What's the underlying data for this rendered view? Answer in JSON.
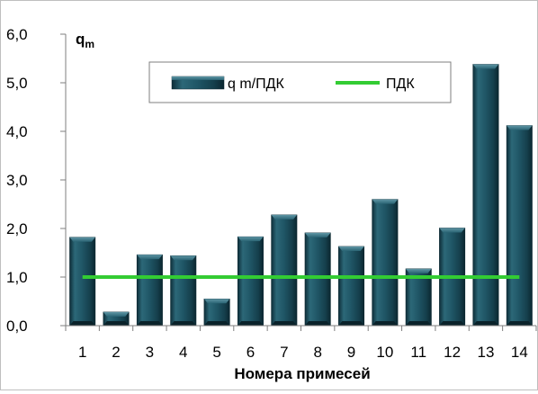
{
  "chart_data": {
    "type": "bar",
    "categories": [
      "1",
      "2",
      "3",
      "4",
      "5",
      "6",
      "7",
      "8",
      "9",
      "10",
      "11",
      "12",
      "13",
      "14"
    ],
    "series": [
      {
        "name": "q m/ПДК",
        "kind": "bar",
        "color": "#1f4e5f",
        "values": [
          1.82,
          0.28,
          1.46,
          1.44,
          0.55,
          1.83,
          2.28,
          1.91,
          1.63,
          2.6,
          1.17,
          2.01,
          5.38,
          4.12
        ]
      },
      {
        "name": "ПДК",
        "kind": "line",
        "color": "#33cc33",
        "values": [
          1,
          1,
          1,
          1,
          1,
          1,
          1,
          1,
          1,
          1,
          1,
          1,
          1,
          1
        ]
      }
    ],
    "ylim": [
      0,
      6
    ],
    "yticks": [
      "0,0",
      "1,0",
      "2,0",
      "3,0",
      "4,0",
      "5,0",
      "6,0"
    ],
    "ylabel": "q",
    "ylabel_sub": "m",
    "xlabel": "Номера примесей",
    "legend_position": "top-center",
    "grid": false
  }
}
